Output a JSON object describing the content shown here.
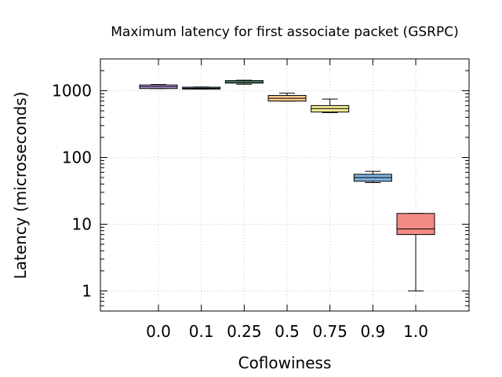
{
  "chart_data": {
    "type": "box",
    "title": "Maximum latency for first associate packet (GSRPC)",
    "xlabel": "Coflowiness",
    "ylabel": "Latency (microseconds)",
    "yscale": "log",
    "ylim": [
      0.5,
      3000
    ],
    "grid": true,
    "categories": [
      "0.0",
      "0.1",
      "0.25",
      "0.5",
      "0.75",
      "0.9",
      "1.0"
    ],
    "y_ticks": [
      {
        "value": 1,
        "label": "1"
      },
      {
        "value": 10,
        "label": "10"
      },
      {
        "value": 100,
        "label": "100"
      },
      {
        "value": 1000,
        "label": "1000"
      }
    ],
    "boxes": [
      {
        "category": "0.0",
        "min": 1080,
        "q1": 1080,
        "median": 1150,
        "q3": 1220,
        "max": 1240,
        "color": "#c8a2e8"
      },
      {
        "category": "0.1",
        "min": 1060,
        "q1": 1060,
        "median": 1090,
        "q3": 1130,
        "max": 1140,
        "color": "#77bde6"
      },
      {
        "category": "0.25",
        "min": 1250,
        "q1": 1300,
        "median": 1360,
        "q3": 1420,
        "max": 1440,
        "color": "#88d8a8"
      },
      {
        "category": "0.5",
        "min": 700,
        "q1": 700,
        "median": 770,
        "q3": 850,
        "max": 920,
        "color": "#f6c98a"
      },
      {
        "category": "0.75",
        "min": 470,
        "q1": 480,
        "median": 540,
        "q3": 600,
        "max": 750,
        "color": "#f3ec97"
      },
      {
        "category": "0.9",
        "min": 42,
        "q1": 44,
        "median": 50,
        "q3": 56,
        "max": 62,
        "color": "#7eb2de"
      },
      {
        "category": "1.0",
        "min": 1,
        "q1": 7,
        "median": 8.5,
        "q3": 14.5,
        "max": 14.5,
        "color": "#f28b82"
      }
    ]
  }
}
